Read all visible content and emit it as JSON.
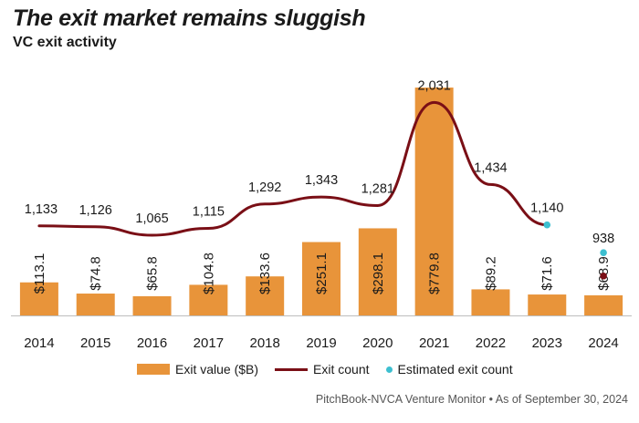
{
  "title": "The exit market remains sluggish",
  "subtitle": "VC exit activity",
  "source": "PitchBook-NVCA Venture Monitor  •  As of September 30, 2024",
  "colors": {
    "bar": "#E8943A",
    "line": "#7A0F16",
    "estimate": "#3DBFD0"
  },
  "legend": {
    "bar_label": "Exit value ($B)",
    "line_label": "Exit count",
    "estimate_label": "Estimated exit count"
  },
  "chart_data": {
    "type": "bar+line",
    "categories": [
      "2014",
      "2015",
      "2016",
      "2017",
      "2018",
      "2019",
      "2020",
      "2021",
      "2022",
      "2023",
      "2024"
    ],
    "series": [
      {
        "name": "Exit value ($B)",
        "type": "bar",
        "values": [
          113.1,
          74.8,
          65.8,
          104.8,
          133.6,
          251.1,
          298.1,
          779.8,
          89.2,
          71.6,
          68.9
        ],
        "labels": [
          "$113.1",
          "$74.8",
          "$65.8",
          "$104.8",
          "$133.6",
          "$251.1",
          "$298.1",
          "$779.8",
          "$89.2",
          "$71.6",
          "$68.9"
        ]
      },
      {
        "name": "Exit count",
        "type": "line",
        "values": [
          1133,
          1126,
          1065,
          1115,
          1292,
          1343,
          1281,
          2031,
          1434,
          1140,
          768
        ],
        "labels": [
          "1,133",
          "1,126",
          "1,065",
          "1,115",
          "1,292",
          "1,343",
          "1,281",
          "2,031",
          "1,434",
          "1,140",
          ""
        ]
      },
      {
        "name": "Estimated exit count",
        "type": "scatter",
        "values": [
          null,
          null,
          null,
          null,
          null,
          null,
          null,
          null,
          null,
          1140,
          938
        ],
        "labels": [
          "",
          "",
          "",
          "",
          "",
          "",
          "",
          "",
          "",
          "",
          "938"
        ]
      }
    ]
  }
}
